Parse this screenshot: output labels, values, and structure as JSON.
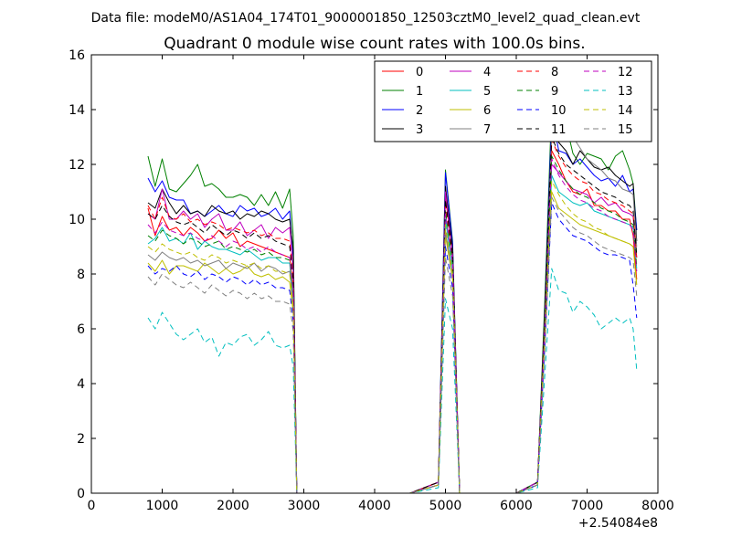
{
  "chart_data": {
    "type": "line",
    "suptitle": "Data file: modeM0/AS1A04_174T01_9000001850_12503cztM0_level2_quad_clean.evt",
    "title": "Quadrant 0 module wise count rates with 100.0s bins.",
    "xlabel": "",
    "ylabel": "",
    "x_offset_label": "+2.54084e8",
    "xlim": [
      0,
      8000
    ],
    "ylim": [
      0,
      16
    ],
    "x_ticks": [
      0,
      1000,
      2000,
      3000,
      4000,
      5000,
      6000,
      7000,
      8000
    ],
    "y_ticks": [
      0,
      2,
      4,
      6,
      8,
      10,
      12,
      14,
      16
    ],
    "legend_position": "top-right",
    "legend_columns": 4,
    "x": [
      800,
      900,
      1000,
      1100,
      1200,
      1300,
      1400,
      1500,
      1600,
      1700,
      1800,
      1900,
      2000,
      2100,
      2200,
      2300,
      2400,
      2500,
      2600,
      2700,
      2800,
      2850,
      2900,
      3000,
      3500,
      4000,
      4500,
      4900,
      5000,
      5100,
      5200,
      5300,
      5400,
      6000,
      6300,
      6400,
      6500,
      6600,
      6700,
      6800,
      6900,
      7000,
      7100,
      7200,
      7300,
      7400,
      7500,
      7600,
      7650,
      7700
    ],
    "series": [
      {
        "name": "0",
        "color": "#ff0000",
        "dash": false,
        "values": [
          10.4,
          9.4,
          10.1,
          9.6,
          9.7,
          9.4,
          9.7,
          9.5,
          9.2,
          9.3,
          9.6,
          9.3,
          9.5,
          9.0,
          9.2,
          9.1,
          9.0,
          8.9,
          8.8,
          8.7,
          8.6,
          7.5,
          0,
          0,
          0,
          0,
          0,
          0.4,
          10.8,
          8.8,
          0,
          0,
          0,
          0,
          0.4,
          6.0,
          12.5,
          12.0,
          11.4,
          11.0,
          10.9,
          11.1,
          10.5,
          10.5,
          10.3,
          10.3,
          10.0,
          10.0,
          9.4,
          7.8
        ]
      },
      {
        "name": "1",
        "color": "#008000",
        "dash": false,
        "values": [
          12.3,
          11.2,
          12.2,
          11.1,
          11.0,
          11.3,
          11.6,
          12.0,
          11.2,
          11.3,
          11.1,
          10.8,
          10.8,
          10.9,
          10.8,
          10.5,
          10.9,
          10.5,
          11.0,
          10.4,
          11.1,
          9.4,
          0,
          0,
          0,
          0,
          0,
          0.4,
          11.8,
          9.2,
          0,
          0,
          0,
          0,
          0.4,
          6.8,
          14.2,
          13.0,
          13.5,
          12.4,
          12.0,
          12.4,
          12.3,
          12.2,
          11.8,
          12.3,
          12.5,
          11.8,
          11.3,
          9.6
        ]
      },
      {
        "name": "2",
        "color": "#0000ff",
        "dash": false,
        "values": [
          11.5,
          11.0,
          11.4,
          10.8,
          10.7,
          10.7,
          10.2,
          10.3,
          10.1,
          10.3,
          10.5,
          10.2,
          10.1,
          10.5,
          10.3,
          10.4,
          10.1,
          10.2,
          10.4,
          10.0,
          10.3,
          8.6,
          0,
          0,
          0,
          0,
          0,
          0.4,
          11.7,
          9.1,
          0,
          0,
          0,
          0,
          0.4,
          6.4,
          13.8,
          12.5,
          12.4,
          12.0,
          12.2,
          11.9,
          11.6,
          11.4,
          11.5,
          11.2,
          11.6,
          11.0,
          11.1,
          9.6
        ]
      },
      {
        "name": "3",
        "color": "#000000",
        "dash": false,
        "values": [
          10.6,
          10.4,
          11.1,
          10.6,
          10.2,
          10.5,
          10.2,
          10.3,
          10.1,
          10.5,
          10.3,
          10.2,
          10.3,
          10.0,
          10.2,
          10.1,
          10.3,
          10.2,
          10.0,
          9.9,
          10.0,
          8.9,
          0,
          0,
          0,
          0,
          0,
          0.4,
          11.2,
          8.9,
          0,
          0,
          0,
          0,
          0.4,
          6.4,
          13.2,
          12.8,
          12.5,
          12.0,
          12.5,
          12.2,
          11.9,
          11.8,
          11.9,
          11.6,
          11.4,
          11.2,
          11.3,
          9.2
        ]
      },
      {
        "name": "4",
        "color": "#bf00bf",
        "dash": false,
        "values": [
          10.2,
          10.0,
          11.1,
          10.0,
          10.0,
          10.3,
          10.0,
          10.2,
          9.7,
          10.0,
          10.2,
          9.6,
          9.6,
          9.9,
          9.4,
          9.6,
          9.8,
          9.3,
          9.7,
          9.5,
          9.7,
          8.1,
          0,
          0,
          0,
          0,
          0,
          0.4,
          11.0,
          8.7,
          0,
          0,
          0,
          0,
          0.4,
          6.0,
          12.0,
          11.7,
          11.4,
          11.1,
          11.0,
          10.9,
          10.6,
          10.8,
          10.5,
          10.6,
          10.3,
          10.2,
          10.1,
          8.6
        ]
      },
      {
        "name": "5",
        "color": "#00bfbf",
        "dash": false,
        "values": [
          9.1,
          9.3,
          9.7,
          9.2,
          9.3,
          9.1,
          9.5,
          8.9,
          9.2,
          9.0,
          8.9,
          8.9,
          8.8,
          8.7,
          8.9,
          8.7,
          8.5,
          8.6,
          8.6,
          8.4,
          8.4,
          7.1,
          0,
          0,
          0,
          0,
          0,
          0.3,
          10.0,
          8.2,
          0,
          0,
          0,
          0,
          0.4,
          5.8,
          11.6,
          11.0,
          10.8,
          10.6,
          10.5,
          10.6,
          10.3,
          10.2,
          10.1,
          10.0,
          9.9,
          9.8,
          9.7,
          8.2
        ]
      },
      {
        "name": "6",
        "color": "#bfbf00",
        "dash": false,
        "values": [
          8.4,
          8.1,
          8.5,
          8.0,
          8.3,
          8.3,
          8.2,
          8.1,
          8.4,
          8.2,
          8.0,
          8.2,
          8.0,
          8.1,
          8.3,
          8.0,
          7.9,
          8.0,
          7.8,
          7.9,
          7.7,
          6.6,
          0,
          0,
          0,
          0,
          0,
          0.3,
          9.4,
          7.8,
          0,
          0,
          0,
          0,
          0.3,
          5.4,
          11.0,
          10.4,
          10.2,
          10.0,
          9.8,
          9.7,
          9.6,
          9.5,
          9.4,
          9.3,
          9.2,
          9.1,
          9.0,
          7.6
        ]
      },
      {
        "name": "7",
        "color": "#808080",
        "dash": false,
        "values": [
          8.7,
          8.5,
          8.8,
          8.6,
          8.5,
          8.6,
          8.4,
          8.5,
          8.3,
          8.4,
          8.5,
          8.2,
          8.4,
          8.3,
          8.2,
          8.4,
          8.1,
          8.3,
          8.2,
          8.0,
          8.1,
          6.9,
          0,
          0,
          0,
          0,
          0,
          0.3,
          9.6,
          7.9,
          0,
          0,
          0,
          0,
          0.3,
          5.6,
          13.2,
          13.5,
          13.8,
          13.0,
          12.6,
          12.2,
          12.0,
          11.8,
          11.5,
          11.4,
          11.1,
          11.0,
          10.9,
          9.0
        ]
      },
      {
        "name": "8",
        "color": "#ff0000",
        "dash": true,
        "values": [
          10.5,
          10.0,
          10.8,
          10.1,
          10.0,
          10.2,
          9.9,
          10.0,
          9.8,
          9.9,
          9.8,
          9.6,
          9.7,
          9.6,
          9.5,
          9.6,
          9.4,
          9.5,
          9.3,
          9.3,
          9.2,
          7.9,
          0,
          0,
          0,
          0,
          0,
          0.4,
          10.5,
          8.6,
          0,
          0,
          0,
          0,
          0.4,
          6.1,
          12.9,
          12.3,
          11.9,
          11.6,
          11.4,
          11.3,
          11.0,
          10.9,
          10.7,
          10.6,
          10.5,
          10.3,
          10.2,
          8.6
        ]
      },
      {
        "name": "9",
        "color": "#008000",
        "dash": true,
        "values": [
          9.4,
          9.2,
          9.6,
          9.4,
          9.3,
          9.1,
          9.3,
          9.2,
          9.0,
          9.1,
          9.2,
          8.9,
          9.0,
          8.9,
          8.8,
          8.9,
          8.7,
          8.8,
          8.6,
          8.6,
          8.5,
          7.3,
          0,
          0,
          0,
          0,
          0,
          0.3,
          10.3,
          8.4,
          0,
          0,
          0,
          0,
          0.4,
          5.9,
          12.3,
          11.8,
          11.4,
          11.1,
          10.9,
          10.8,
          10.6,
          10.4,
          10.3,
          10.2,
          10.0,
          9.9,
          9.8,
          8.3
        ]
      },
      {
        "name": "10",
        "color": "#0000ff",
        "dash": true,
        "values": [
          8.3,
          8.0,
          8.2,
          8.1,
          8.3,
          8.0,
          7.9,
          8.1,
          7.8,
          8.0,
          7.9,
          7.7,
          7.9,
          7.8,
          7.6,
          7.8,
          7.6,
          7.7,
          7.5,
          7.5,
          7.4,
          6.3,
          0,
          0,
          0,
          0,
          0,
          0.3,
          9.0,
          7.5,
          0,
          0,
          0,
          0,
          0.3,
          5.2,
          10.6,
          10.0,
          9.7,
          9.4,
          9.3,
          9.2,
          9.0,
          8.8,
          8.7,
          8.7,
          8.6,
          8.5,
          7.6,
          6.4
        ]
      },
      {
        "name": "11",
        "color": "#000000",
        "dash": true,
        "values": [
          10.2,
          10.0,
          10.5,
          10.1,
          9.9,
          9.8,
          9.9,
          9.7,
          9.5,
          9.8,
          9.6,
          9.4,
          9.6,
          9.5,
          9.3,
          9.5,
          9.3,
          9.4,
          9.2,
          9.1,
          9.0,
          7.8,
          0,
          0,
          0,
          0,
          0,
          0.4,
          10.7,
          8.7,
          0,
          0,
          0,
          0,
          0.4,
          6.2,
          13.0,
          12.4,
          12.0,
          11.8,
          11.6,
          11.4,
          11.2,
          11.0,
          10.9,
          10.8,
          10.6,
          10.5,
          10.3,
          8.7
        ]
      },
      {
        "name": "12",
        "color": "#bf00bf",
        "dash": true,
        "values": [
          9.8,
          9.5,
          9.9,
          9.6,
          9.5,
          9.4,
          9.5,
          9.3,
          9.2,
          9.4,
          9.2,
          9.0,
          9.2,
          9.1,
          8.9,
          9.0,
          8.8,
          9.0,
          8.8,
          8.7,
          8.6,
          7.4,
          0,
          0,
          0,
          0,
          0,
          0.3,
          10.2,
          8.4,
          0,
          0,
          0,
          0,
          0.4,
          5.9,
          12.2,
          11.6,
          11.2,
          10.9,
          10.7,
          10.6,
          10.4,
          10.3,
          10.1,
          10.0,
          9.9,
          9.8,
          9.6,
          8.1
        ]
      },
      {
        "name": "13",
        "color": "#00bfbf",
        "dash": true,
        "values": [
          6.4,
          6.0,
          6.6,
          6.2,
          5.8,
          5.6,
          5.8,
          6.0,
          5.5,
          5.7,
          5.0,
          5.5,
          5.4,
          5.7,
          5.8,
          5.4,
          5.6,
          5.9,
          5.4,
          5.3,
          5.4,
          4.6,
          0,
          0,
          0,
          0,
          0,
          0.2,
          7.1,
          6.0,
          0,
          0,
          0,
          0,
          0.2,
          4.2,
          8.2,
          7.4,
          7.3,
          6.6,
          7.0,
          6.8,
          6.5,
          6.0,
          6.2,
          6.4,
          6.2,
          6.4,
          6.0,
          4.5
        ]
      },
      {
        "name": "14",
        "color": "#bfbf00",
        "dash": true,
        "values": [
          9.0,
          8.8,
          9.1,
          8.9,
          8.8,
          8.7,
          8.8,
          8.6,
          8.5,
          8.7,
          8.6,
          8.4,
          8.5,
          8.4,
          8.3,
          8.4,
          8.2,
          8.3,
          8.1,
          8.1,
          8.0,
          6.8,
          0,
          0,
          0,
          0,
          0,
          0.3,
          9.8,
          8.0,
          0,
          0,
          0,
          0,
          0.3,
          5.6,
          11.4,
          10.9,
          10.5,
          10.2,
          10.0,
          9.9,
          9.7,
          9.6,
          9.4,
          9.3,
          9.2,
          9.1,
          9.0,
          7.6
        ]
      },
      {
        "name": "15",
        "color": "#808080",
        "dash": true,
        "values": [
          7.9,
          7.6,
          8.0,
          7.8,
          7.6,
          7.5,
          7.7,
          7.5,
          7.3,
          7.6,
          7.4,
          7.2,
          7.4,
          7.3,
          7.1,
          7.3,
          7.1,
          7.2,
          7.0,
          7.0,
          6.9,
          5.9,
          0,
          0,
          0,
          0,
          0,
          0.3,
          8.6,
          7.2,
          0,
          0,
          0,
          0,
          0.3,
          5.0,
          10.8,
          10.3,
          10.0,
          9.7,
          9.5,
          9.4,
          9.2,
          9.0,
          8.9,
          8.8,
          8.7,
          8.6,
          8.5,
          7.2
        ]
      }
    ]
  }
}
